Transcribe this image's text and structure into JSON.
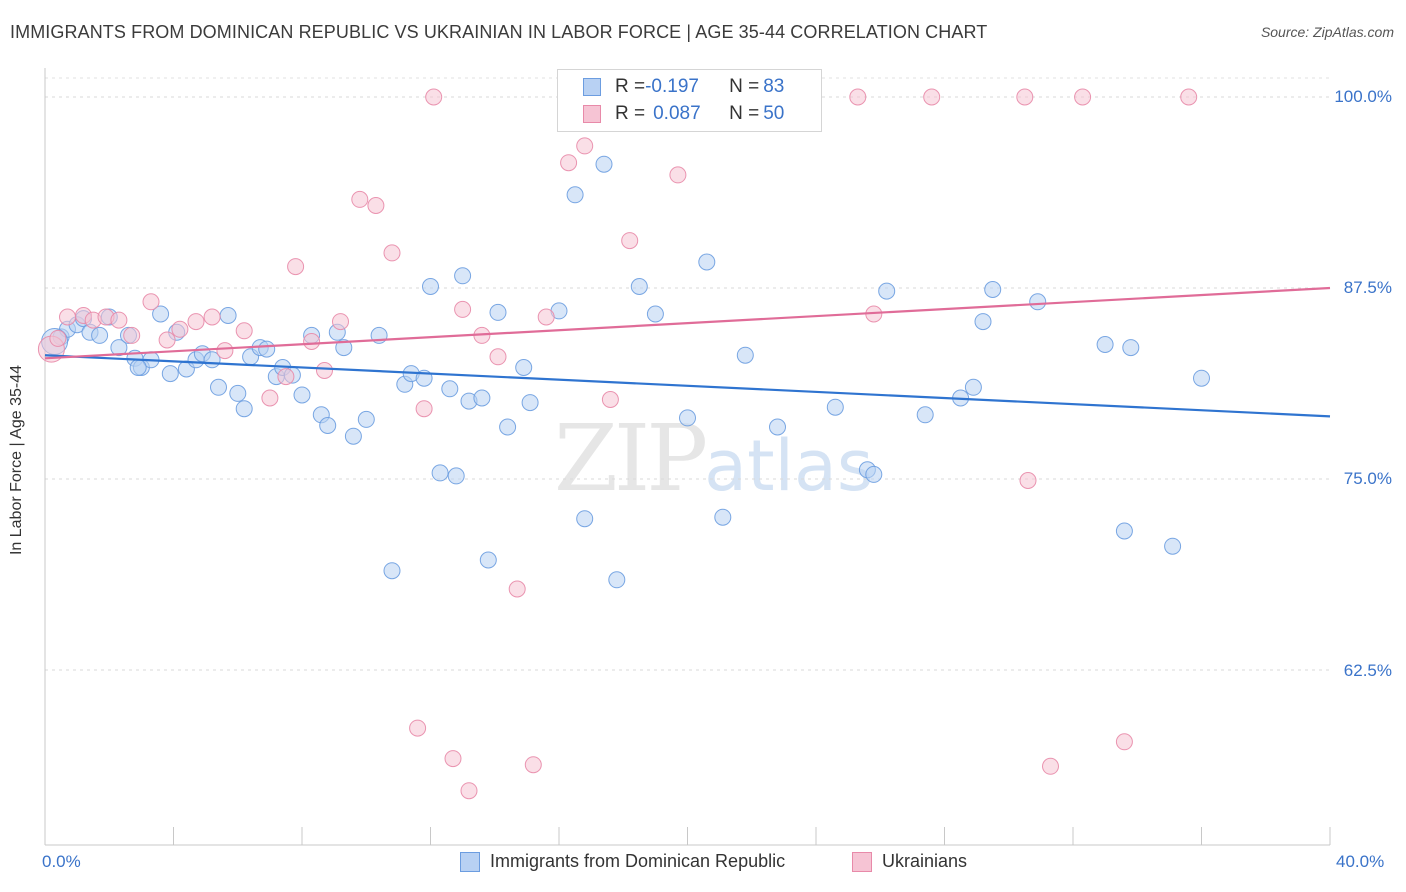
{
  "header": {
    "title": "IMMIGRANTS FROM DOMINICAN REPUBLIC VS UKRAINIAN IN LABOR FORCE | AGE 35-44 CORRELATION CHART",
    "source": "Source: ZipAtlas.com"
  },
  "watermark": {
    "zip": "ZIP",
    "atlas": "atlas"
  },
  "legend_top": {
    "rows": [
      {
        "r_label": "R = ",
        "r_value": "-0.197",
        "n_label": "N = ",
        "n_value": "83"
      },
      {
        "r_label": "R = ",
        "r_value": "0.087",
        "n_label": "N = ",
        "n_value": "50"
      }
    ]
  },
  "chart_data": {
    "type": "scatter",
    "title": "IMMIGRANTS FROM DOMINICAN REPUBLIC VS UKRAINIAN IN LABOR FORCE | AGE 35-44 CORRELATION CHART",
    "xlabel": "",
    "ylabel": "In Labor Force | Age 35-44",
    "xlim": [
      0,
      40
    ],
    "ylim": [
      50,
      100
    ],
    "x_ticks_labels": [
      "0.0%",
      "40.0%"
    ],
    "y_ticks": [
      100.0,
      87.5,
      75.0,
      62.5
    ],
    "y_ticks_labels": [
      "100.0%",
      "87.5%",
      "75.0%",
      "62.5%"
    ],
    "grid": "horizontal dashed",
    "legend_position": "bottom-center",
    "series": [
      {
        "name": "Immigrants from Dominican Republic",
        "color": "#6c9de0",
        "fill": "#b8d1f3",
        "trend": {
          "x": [
            0,
            40
          ],
          "y": [
            83.1,
            79.1
          ]
        },
        "points": [
          [
            0.5,
            84.3
          ],
          [
            0.7,
            84.8
          ],
          [
            1.0,
            85.1
          ],
          [
            1.2,
            85.5
          ],
          [
            1.4,
            84.6
          ],
          [
            1.7,
            84.4
          ],
          [
            2.0,
            85.6
          ],
          [
            2.3,
            83.6
          ],
          [
            2.6,
            84.4
          ],
          [
            2.8,
            82.9
          ],
          [
            3.0,
            82.3
          ],
          [
            3.3,
            82.8
          ],
          [
            3.6,
            85.8
          ],
          [
            3.9,
            81.9
          ],
          [
            4.1,
            84.6
          ],
          [
            4.4,
            82.2
          ],
          [
            4.7,
            82.8
          ],
          [
            4.9,
            83.2
          ],
          [
            5.2,
            82.8
          ],
          [
            5.4,
            81.0
          ],
          [
            5.7,
            85.7
          ],
          [
            6.0,
            80.6
          ],
          [
            6.2,
            79.6
          ],
          [
            6.4,
            83.0
          ],
          [
            6.7,
            83.6
          ],
          [
            6.9,
            83.5
          ],
          [
            7.2,
            81.7
          ],
          [
            7.4,
            82.3
          ],
          [
            7.7,
            81.8
          ],
          [
            8.0,
            80.5
          ],
          [
            8.3,
            84.4
          ],
          [
            8.6,
            79.2
          ],
          [
            8.8,
            78.5
          ],
          [
            9.1,
            84.6
          ],
          [
            9.3,
            83.6
          ],
          [
            9.6,
            77.8
          ],
          [
            10.0,
            78.9
          ],
          [
            10.4,
            84.4
          ],
          [
            10.8,
            69.0
          ],
          [
            11.2,
            81.2
          ],
          [
            11.4,
            81.9
          ],
          [
            11.8,
            81.6
          ],
          [
            12.0,
            87.6
          ],
          [
            12.3,
            75.4
          ],
          [
            12.6,
            80.9
          ],
          [
            12.8,
            75.2
          ],
          [
            13.0,
            88.3
          ],
          [
            13.2,
            80.1
          ],
          [
            13.6,
            80.3
          ],
          [
            13.8,
            69.7
          ],
          [
            14.1,
            85.9
          ],
          [
            14.4,
            78.4
          ],
          [
            14.9,
            82.3
          ],
          [
            15.1,
            80.0
          ],
          [
            16.0,
            86.0
          ],
          [
            16.5,
            93.6
          ],
          [
            16.8,
            72.4
          ],
          [
            17.4,
            95.6
          ],
          [
            17.8,
            68.4
          ],
          [
            18.5,
            87.6
          ],
          [
            19.0,
            85.8
          ],
          [
            20.0,
            79.0
          ],
          [
            20.6,
            89.2
          ],
          [
            21.1,
            72.5
          ],
          [
            21.8,
            83.1
          ],
          [
            22.8,
            78.4
          ],
          [
            24.6,
            79.7
          ],
          [
            25.6,
            75.6
          ],
          [
            25.8,
            75.3
          ],
          [
            26.2,
            87.3
          ],
          [
            27.4,
            79.2
          ],
          [
            28.5,
            80.3
          ],
          [
            28.9,
            81.0
          ],
          [
            29.2,
            85.3
          ],
          [
            29.5,
            87.4
          ],
          [
            30.9,
            86.6
          ],
          [
            33.0,
            83.8
          ],
          [
            33.6,
            71.6
          ],
          [
            33.8,
            83.6
          ],
          [
            35.1,
            70.6
          ],
          [
            36.0,
            81.6
          ],
          [
            0.3,
            84.0
          ],
          [
            2.9,
            82.3
          ]
        ]
      },
      {
        "name": "Ukrainians",
        "color": "#e88aa9",
        "fill": "#f6c4d4",
        "trend": {
          "x": [
            0,
            40
          ],
          "y": [
            82.9,
            87.5
          ]
        },
        "points": [
          [
            0.2,
            83.5
          ],
          [
            0.4,
            84.2
          ],
          [
            0.7,
            85.6
          ],
          [
            1.2,
            85.7
          ],
          [
            1.5,
            85.4
          ],
          [
            1.9,
            85.6
          ],
          [
            2.3,
            85.4
          ],
          [
            2.7,
            84.4
          ],
          [
            3.3,
            86.6
          ],
          [
            3.8,
            84.1
          ],
          [
            4.2,
            84.8
          ],
          [
            4.7,
            85.3
          ],
          [
            5.2,
            85.6
          ],
          [
            5.6,
            83.4
          ],
          [
            6.2,
            84.7
          ],
          [
            7.0,
            80.3
          ],
          [
            7.5,
            81.7
          ],
          [
            7.8,
            88.9
          ],
          [
            8.3,
            84.0
          ],
          [
            8.7,
            82.1
          ],
          [
            9.2,
            85.3
          ],
          [
            9.8,
            93.3
          ],
          [
            10.3,
            92.9
          ],
          [
            10.8,
            89.8
          ],
          [
            11.6,
            58.7
          ],
          [
            11.8,
            79.6
          ],
          [
            12.1,
            100.0
          ],
          [
            12.7,
            56.7
          ],
          [
            13.0,
            86.1
          ],
          [
            13.2,
            54.6
          ],
          [
            13.6,
            84.4
          ],
          [
            14.1,
            83.0
          ],
          [
            14.7,
            67.8
          ],
          [
            15.2,
            56.3
          ],
          [
            15.6,
            85.6
          ],
          [
            16.3,
            95.7
          ],
          [
            16.8,
            96.8
          ],
          [
            17.6,
            80.2
          ],
          [
            18.2,
            90.6
          ],
          [
            19.7,
            94.9
          ],
          [
            23.0,
            100.0
          ],
          [
            25.3,
            100.0
          ],
          [
            25.8,
            85.8
          ],
          [
            27.6,
            100.0
          ],
          [
            30.5,
            100.0
          ],
          [
            30.6,
            74.9
          ],
          [
            31.3,
            56.2
          ],
          [
            32.3,
            100.0
          ],
          [
            33.6,
            57.8
          ],
          [
            35.6,
            100.0
          ]
        ]
      }
    ]
  },
  "bottom_legend": {
    "items": [
      {
        "label": "Immigrants from Dominican Republic"
      },
      {
        "label": "Ukrainians"
      }
    ]
  }
}
